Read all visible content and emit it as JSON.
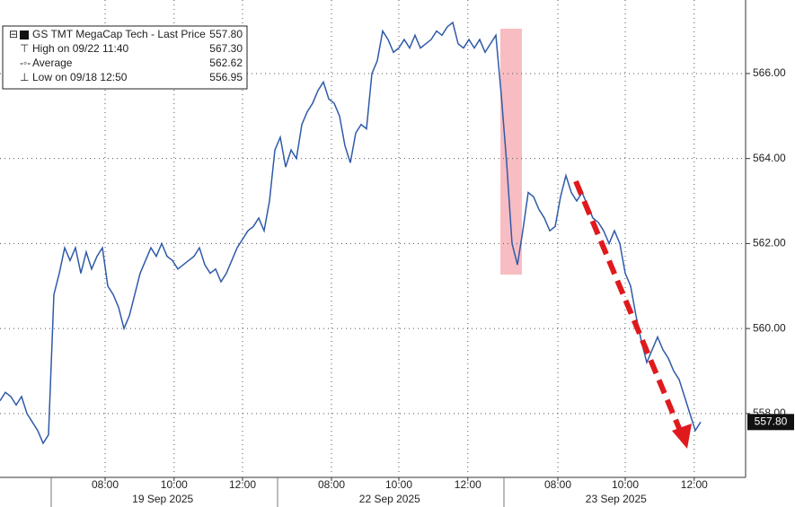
{
  "chart_data": {
    "type": "line",
    "legend": {
      "rows": [
        {
          "label": "GS TMT MegaCap Tech - Last Price",
          "value": "557.80"
        },
        {
          "label": "High on 09/22 11:40",
          "value": "567.30"
        },
        {
          "label": "Average",
          "value": "562.62"
        },
        {
          "label": "Low on 09/18 12:50",
          "value": "556.95"
        }
      ]
    },
    "series": [
      {
        "name": "GS TMT MegaCap Tech",
        "color": "#2f5aa8",
        "values": [
          558.3,
          558.5,
          558.4,
          558.2,
          558.4,
          558.0,
          557.8,
          557.6,
          557.3,
          557.5,
          560.8,
          561.3,
          561.9,
          561.6,
          561.9,
          561.3,
          561.8,
          561.4,
          561.7,
          561.9,
          561.0,
          560.8,
          560.5,
          560.0,
          560.3,
          560.8,
          561.3,
          561.6,
          561.9,
          561.7,
          562.0,
          561.7,
          561.6,
          561.4,
          561.5,
          561.6,
          561.7,
          561.9,
          561.5,
          561.3,
          561.4,
          561.1,
          561.3,
          561.6,
          561.9,
          562.1,
          562.3,
          562.4,
          562.6,
          562.3,
          563.0,
          564.2,
          564.5,
          563.8,
          564.2,
          564.0,
          564.8,
          565.1,
          565.3,
          565.6,
          565.8,
          565.4,
          565.3,
          565.0,
          564.3,
          563.9,
          564.6,
          564.8,
          564.7,
          566.0,
          566.3,
          567.0,
          566.8,
          566.5,
          566.6,
          566.8,
          566.6,
          566.9,
          566.6,
          566.7,
          566.8,
          567.0,
          566.9,
          567.1,
          567.2,
          566.7,
          566.6,
          566.8,
          566.6,
          566.8,
          566.5,
          566.7,
          566.9,
          565.5,
          563.9,
          562.0,
          561.5,
          562.3,
          563.2,
          563.1,
          562.8,
          562.6,
          562.3,
          562.4,
          563.1,
          563.6,
          563.2,
          563.0,
          563.2,
          562.9,
          562.6,
          562.5,
          562.3,
          562.0,
          562.3,
          562.0,
          561.3,
          561.0,
          560.3,
          559.7,
          559.2,
          559.5,
          559.8,
          559.5,
          559.3,
          559.0,
          558.8,
          558.4,
          558.0,
          557.6,
          557.8
        ]
      }
    ],
    "xlim": [
      0,
      138
    ],
    "xticks": [
      {
        "value": 19.5,
        "label": "08:00"
      },
      {
        "value": 32.3,
        "label": "10:00"
      },
      {
        "value": 45,
        "label": "12:00"
      },
      {
        "value": 61.5,
        "label": "08:00"
      },
      {
        "value": 74,
        "label": "10:00"
      },
      {
        "value": 86.8,
        "label": "12:00"
      },
      {
        "value": 103.5,
        "label": "08:00"
      },
      {
        "value": 116,
        "label": "10:00"
      },
      {
        "value": 128.8,
        "label": "12:00"
      }
    ],
    "date_labels": [
      {
        "value": 30.2,
        "label": "19 Sep 2025"
      },
      {
        "value": 72.3,
        "label": "22 Sep 2025"
      },
      {
        "value": 114.3,
        "label": "23 Sep 2025"
      }
    ],
    "ylim": [
      556.54,
      567.73
    ],
    "yticks": [
      {
        "value": 558,
        "label": "558.00"
      },
      {
        "value": 560,
        "label": "560.00"
      },
      {
        "value": 562,
        "label": "562.00"
      },
      {
        "value": 564,
        "label": "564.00"
      },
      {
        "value": 566,
        "label": "566.00"
      }
    ],
    "grid": true
  }
}
